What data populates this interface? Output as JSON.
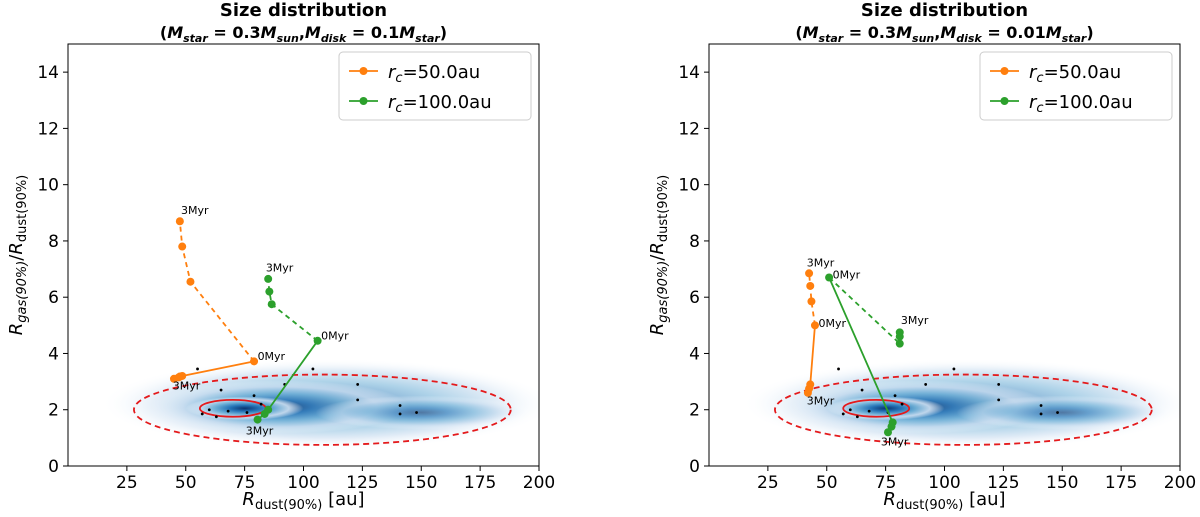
{
  "chart_data": [
    {
      "type": "line",
      "title": "Size distribution",
      "subtitle": "(M_star = 0.3M_sun, M_disk = 0.1M_star)",
      "subtitle_parts": {
        "m": "M",
        "star": "star",
        "sun": "sun",
        "disk": "disk",
        "eq1": " = 0.3",
        "eq2": " = 0.1"
      },
      "xlabel": {
        "base": "R",
        "sub": "dust(90%)",
        "unit": " [au]"
      },
      "ylabel": {
        "base1": "R",
        "sub1": "gas(90%)",
        "slash": "/",
        "base2": "R",
        "sub2": "dust(90%)"
      },
      "xlim": [
        0,
        200
      ],
      "ylim": [
        0,
        15
      ],
      "xticks": [
        25,
        50,
        75,
        100,
        125,
        150,
        175,
        200
      ],
      "yticks": [
        0,
        2,
        4,
        6,
        8,
        10,
        12,
        14
      ],
      "legend_position": "top-right",
      "series": [
        {
          "name": "r_c=50.0au",
          "legend": {
            "r": "r",
            "c": "c",
            "label": "=50.0au"
          },
          "color": "#ff7f0e",
          "points": [
            [
              79,
              3.72
            ],
            [
              48.5,
              3.2
            ],
            [
              47,
              3.15
            ],
            [
              45,
              3.1
            ],
            [
              47.5,
              3.18
            ]
          ],
          "dashed": [
            [
              79,
              3.72
            ],
            [
              52,
              6.55
            ],
            [
              48.5,
              7.8
            ],
            [
              47.5,
              8.7
            ]
          ],
          "annotations": [
            {
              "text": "0Myr",
              "x": 80.5,
              "y": 3.76
            },
            {
              "text": "3Myr",
              "x": 44.5,
              "y": 2.72
            },
            {
              "text": "3Myr",
              "x": 48,
              "y": 8.95
            }
          ]
        },
        {
          "name": "r_c=100.0au",
          "legend": {
            "r": "r",
            "c": "c",
            "label": "=100.0au"
          },
          "color": "#2ca02c",
          "points": [
            [
              106,
              4.45
            ],
            [
              85,
              2.0
            ],
            [
              83.5,
              1.85
            ],
            [
              80.5,
              1.65
            ]
          ],
          "dashed": [
            [
              106,
              4.45
            ],
            [
              86.5,
              5.75
            ],
            [
              85.5,
              6.2
            ],
            [
              85,
              6.65
            ]
          ],
          "annotations": [
            {
              "text": "0Myr",
              "x": 107.5,
              "y": 4.5
            },
            {
              "text": "3Myr",
              "x": 75.5,
              "y": 1.12
            },
            {
              "text": "3Myr",
              "x": 84,
              "y": 6.92
            }
          ]
        }
      ],
      "density": {
        "colormap": "Blues",
        "peak_x": 75,
        "peak_y": 2.05
      },
      "contours": [
        {
          "style": "dashed",
          "color": "#e41a1c",
          "cx": 108,
          "cy": 2.0,
          "rx": 80,
          "ry": 1.25
        },
        {
          "style": "solid",
          "color": "#e41a1c",
          "cx": 70,
          "cy": 2.05,
          "rx": 14,
          "ry": 0.3
        }
      ],
      "black_points": [
        [
          55,
          3.45
        ],
        [
          65,
          2.7
        ],
        [
          79,
          2.5
        ],
        [
          92,
          2.9
        ],
        [
          123,
          2.9
        ],
        [
          123,
          2.35
        ],
        [
          141,
          2.15
        ],
        [
          141,
          1.85
        ],
        [
          148,
          1.9
        ],
        [
          60,
          2.0
        ],
        [
          68,
          1.95
        ],
        [
          57,
          1.85
        ],
        [
          63,
          1.75
        ],
        [
          76,
          1.9
        ],
        [
          82,
          2.2
        ],
        [
          104,
          3.45
        ]
      ]
    },
    {
      "type": "line",
      "title": "Size distribution",
      "subtitle": "(M_star = 0.3M_sun, M_disk = 0.01M_star)",
      "subtitle_parts": {
        "m": "M",
        "star": "star",
        "sun": "sun",
        "disk": "disk",
        "eq1": " = 0.3",
        "eq2": " = 0.01"
      },
      "xlabel": {
        "base": "R",
        "sub": "dust(90%)",
        "unit": " [au]"
      },
      "ylabel": {
        "base1": "R",
        "sub1": "gas(90%)",
        "slash": "/",
        "base2": "R",
        "sub2": "dust(90%)"
      },
      "xlim": [
        0,
        200
      ],
      "ylim": [
        0,
        15
      ],
      "xticks": [
        25,
        50,
        75,
        100,
        125,
        150,
        175,
        200
      ],
      "yticks": [
        0,
        2,
        4,
        6,
        8,
        10,
        12,
        14
      ],
      "legend_position": "top-right",
      "series": [
        {
          "name": "r_c=50.0au",
          "legend": {
            "r": "r",
            "c": "c",
            "label": "=50.0au"
          },
          "color": "#ff7f0e",
          "points": [
            [
              45,
              5.0
            ],
            [
              43,
              2.9
            ],
            [
              42.5,
              2.75
            ],
            [
              42,
              2.6
            ]
          ],
          "dashed": [
            [
              45,
              5.0
            ],
            [
              43.5,
              5.85
            ],
            [
              43,
              6.4
            ],
            [
              42.5,
              6.85
            ]
          ],
          "annotations": [
            {
              "text": "0Myr",
              "x": 46.5,
              "y": 4.94
            },
            {
              "text": "3Myr",
              "x": 41.5,
              "y": 2.18
            },
            {
              "text": "3Myr",
              "x": 41.5,
              "y": 7.1
            }
          ]
        },
        {
          "name": "r_c=100.0au",
          "legend": {
            "r": "r",
            "c": "c",
            "label": "=100.0au"
          },
          "color": "#2ca02c",
          "points": [
            [
              51,
              6.7
            ],
            [
              78,
              1.55
            ],
            [
              77.5,
              1.4
            ],
            [
              76,
              1.2
            ]
          ],
          "dashed": [
            [
              51,
              6.7
            ],
            [
              81,
              4.35
            ],
            [
              81,
              4.6
            ],
            [
              81,
              4.75
            ]
          ],
          "annotations": [
            {
              "text": "0Myr",
              "x": 52.5,
              "y": 6.66
            },
            {
              "text": "3Myr",
              "x": 73,
              "y": 0.72
            },
            {
              "text": "3Myr",
              "x": 81.5,
              "y": 5.04
            }
          ]
        }
      ],
      "density": {
        "colormap": "Blues",
        "peak_x": 75,
        "peak_y": 2.05
      },
      "contours": [
        {
          "style": "dashed",
          "color": "#e41a1c",
          "cx": 108,
          "cy": 2.0,
          "rx": 80,
          "ry": 1.25
        },
        {
          "style": "solid",
          "color": "#e41a1c",
          "cx": 71,
          "cy": 2.05,
          "rx": 14,
          "ry": 0.3
        }
      ],
      "black_points": [
        [
          55,
          3.45
        ],
        [
          65,
          2.7
        ],
        [
          79,
          2.5
        ],
        [
          92,
          2.9
        ],
        [
          123,
          2.9
        ],
        [
          123,
          2.35
        ],
        [
          141,
          2.15
        ],
        [
          141,
          1.85
        ],
        [
          148,
          1.9
        ],
        [
          60,
          2.0
        ],
        [
          68,
          1.95
        ],
        [
          57,
          1.85
        ],
        [
          63,
          1.75
        ],
        [
          76,
          1.9
        ],
        [
          82,
          2.2
        ],
        [
          104,
          3.45
        ]
      ]
    }
  ]
}
